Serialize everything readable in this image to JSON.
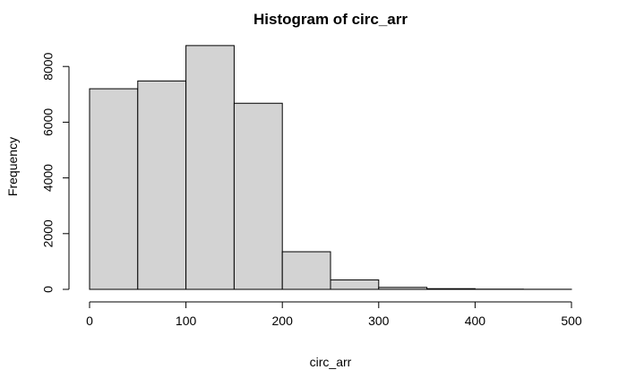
{
  "chart_data": {
    "type": "bar",
    "title": "Histogram of circ_arr",
    "xlabel": "circ_arr",
    "ylabel": "Frequency",
    "bins": [
      {
        "from": 0,
        "to": 50,
        "count": 7200
      },
      {
        "from": 50,
        "to": 100,
        "count": 7480
      },
      {
        "from": 100,
        "to": 150,
        "count": 8750
      },
      {
        "from": 150,
        "to": 200,
        "count": 6680
      },
      {
        "from": 200,
        "to": 250,
        "count": 1350
      },
      {
        "from": 250,
        "to": 300,
        "count": 340
      },
      {
        "from": 300,
        "to": 350,
        "count": 70
      },
      {
        "from": 350,
        "to": 400,
        "count": 25
      },
      {
        "from": 400,
        "to": 450,
        "count": 8
      },
      {
        "from": 450,
        "to": 500,
        "count": 3
      }
    ],
    "xlim": [
      0,
      500
    ],
    "ylim": [
      0,
      9000
    ],
    "x_ticks": [
      0,
      100,
      200,
      300,
      400,
      500
    ],
    "y_ticks": [
      0,
      2000,
      4000,
      6000,
      8000
    ],
    "bar_color": "#d3d3d3",
    "grid": false,
    "legend": "none"
  }
}
